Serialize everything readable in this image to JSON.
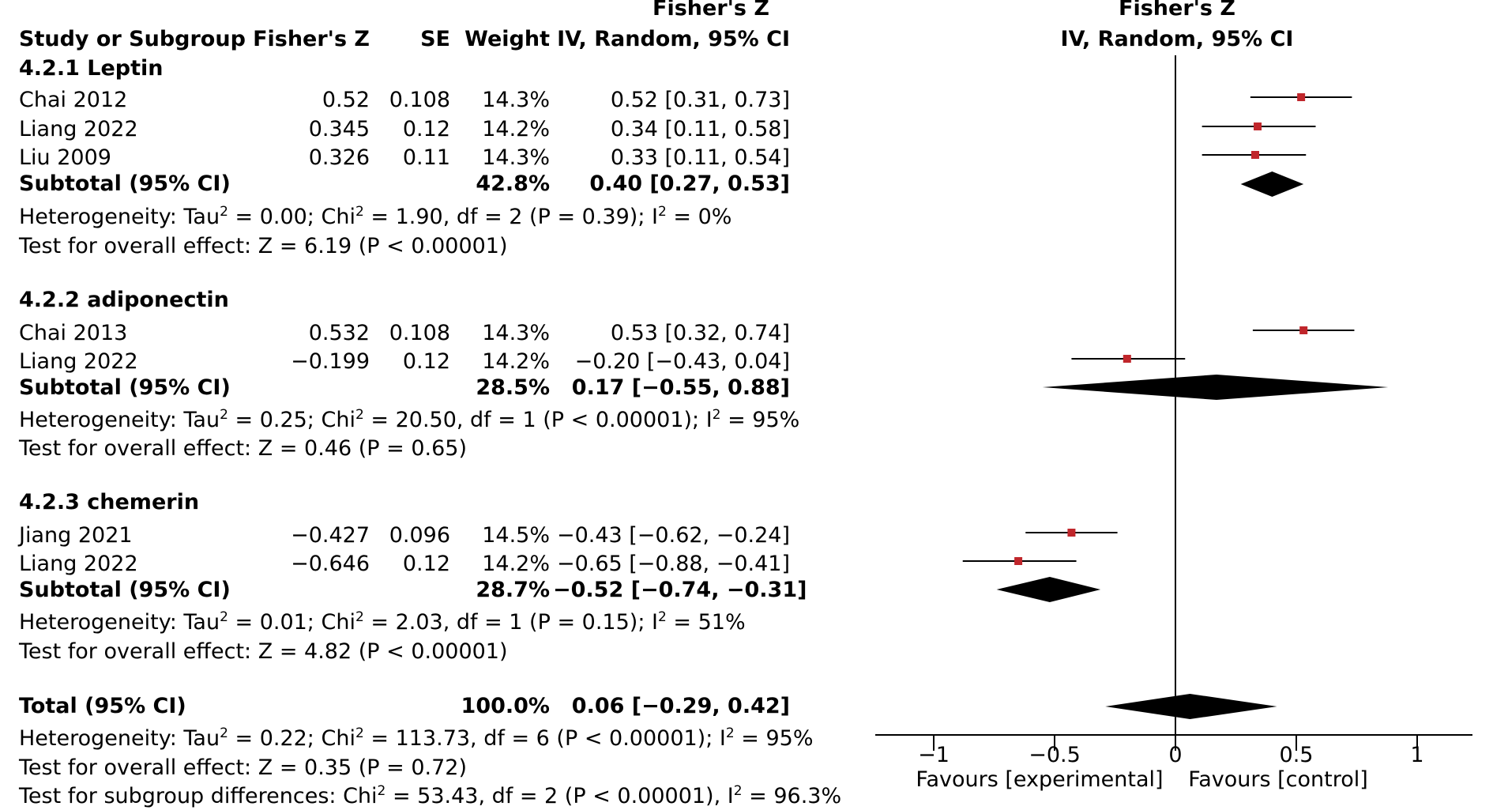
{
  "header": {
    "study_label": "Study or Subgroup",
    "est_label": "Fisher's Z",
    "se_label": "SE",
    "weight_label": "Weight",
    "ci_title": "Fisher's Z",
    "ci_method": "IV, Random, 95% CI",
    "plot_title": "Fisher's Z",
    "plot_method": "IV, Random, 95% CI"
  },
  "subgroups": [
    {
      "title": "4.2.1 Leptin",
      "studies": [
        {
          "name": "Chai  2012",
          "est": "0.52",
          "se": "0.108",
          "weight": "14.3%",
          "ci": "0.52 [0.31, 0.73]"
        },
        {
          "name": "Liang  2022",
          "est": "0.345",
          "se": "0.12",
          "weight": "14.2%",
          "ci": "0.34 [0.11, 0.58]"
        },
        {
          "name": "Liu  2009",
          "est": "0.326",
          "se": "0.11",
          "weight": "14.3%",
          "ci": "0.33 [0.11, 0.54]"
        }
      ],
      "subtotal": {
        "label": "Subtotal (95% CI)",
        "weight": "42.8%",
        "ci": "0.40 [0.27, 0.53]"
      },
      "het": {
        "prefix": "Heterogeneity: Tau",
        "exp1": "2",
        "mid1": " = 0.00; Chi",
        "exp2": "2",
        "mid2": " = 1.90, df = 2 (P = 0.39); I",
        "exp3": "2",
        "suffix": " = 0%"
      },
      "test": "Test for overall effect: Z = 6.19 (P < 0.00001)"
    },
    {
      "title": "4.2.2 adiponectin",
      "studies": [
        {
          "name": "Chai  2013",
          "est": "0.532",
          "se": "0.108",
          "weight": "14.3%",
          "ci": "0.53 [0.32, 0.74]"
        },
        {
          "name": "Liang  2022",
          "est": "−0.199",
          "se": "0.12",
          "weight": "14.2%",
          "ci": "−0.20 [−0.43, 0.04]"
        }
      ],
      "subtotal": {
        "label": "Subtotal (95% CI)",
        "weight": "28.5%",
        "ci": "0.17 [−0.55, 0.88]"
      },
      "het": {
        "prefix": "Heterogeneity: Tau",
        "exp1": "2",
        "mid1": " = 0.25; Chi",
        "exp2": "2",
        "mid2": " = 20.50, df = 1 (P < 0.00001); I",
        "exp3": "2",
        "suffix": " = 95%"
      },
      "test": "Test for overall effect: Z = 0.46 (P = 0.65)"
    },
    {
      "title": "4.2.3 chemerin",
      "studies": [
        {
          "name": "Jiang  2021",
          "est": "−0.427",
          "se": "0.096",
          "weight": "14.5%",
          "ci": "−0.43 [−0.62, −0.24]"
        },
        {
          "name": "Liang  2022",
          "est": "−0.646",
          "se": "0.12",
          "weight": "14.2%",
          "ci": "−0.65 [−0.88, −0.41]"
        }
      ],
      "subtotal": {
        "label": "Subtotal (95% CI)",
        "weight": "28.7%",
        "ci": "−0.52 [−0.74, −0.31]"
      },
      "het": {
        "prefix": "Heterogeneity: Tau",
        "exp1": "2",
        "mid1": " = 0.01; Chi",
        "exp2": "2",
        "mid2": " = 2.03, df = 1 (P = 0.15); I",
        "exp3": "2",
        "suffix": " = 51%"
      },
      "test": "Test for overall effect: Z = 4.82 (P < 0.00001)"
    }
  ],
  "total": {
    "label": "Total (95% CI)",
    "weight": "100.0%",
    "ci": "0.06 [−0.29, 0.42]",
    "het": {
      "prefix": "Heterogeneity: Tau",
      "exp1": "2",
      "mid1": " = 0.22; Chi",
      "exp2": "2",
      "mid2": " = 113.73, df = 6 (P < 0.00001); I",
      "exp3": "2",
      "suffix": " = 95%"
    },
    "test": "Test for overall effect: Z = 0.35 (P = 0.72)",
    "subgroup": {
      "prefix": "Test for subgroup differences: Chi",
      "exp1": "2",
      "mid1": " = 53.43, df = 2 (P < 0.00001), I",
      "exp2": "2",
      "suffix": " = 96.3%"
    }
  },
  "axis": {
    "ticks": [
      {
        "value": -1,
        "label": "−1"
      },
      {
        "value": -0.5,
        "label": "−0.5"
      },
      {
        "value": 0,
        "label": "0"
      },
      {
        "value": 0.5,
        "label": "0.5"
      },
      {
        "value": 1,
        "label": "1"
      }
    ],
    "favours_left": "Favours [experimental]",
    "favours_right": "Favours [control]"
  },
  "colors": {
    "study_marker": "#c0262b",
    "diamond": "#000000",
    "line": "#000000"
  },
  "chart_data": {
    "type": "forest",
    "title": "Fisher's Z IV, Random, 95% CI",
    "xlim": [
      -1.2,
      1.23
    ],
    "null_line": 0,
    "studies": [
      {
        "subgroup": "4.2.1 Leptin",
        "name": "Chai  2012",
        "est": 0.52,
        "lo": 0.31,
        "hi": 0.73
      },
      {
        "subgroup": "4.2.1 Leptin",
        "name": "Liang  2022",
        "est": 0.34,
        "lo": 0.11,
        "hi": 0.58
      },
      {
        "subgroup": "4.2.1 Leptin",
        "name": "Liu  2009",
        "est": 0.33,
        "lo": 0.11,
        "hi": 0.54
      },
      {
        "subgroup": "4.2.2 adiponectin",
        "name": "Chai  2013",
        "est": 0.53,
        "lo": 0.32,
        "hi": 0.74
      },
      {
        "subgroup": "4.2.2 adiponectin",
        "name": "Liang  2022",
        "est": -0.2,
        "lo": -0.43,
        "hi": 0.04
      },
      {
        "subgroup": "4.2.3 chemerin",
        "name": "Jiang  2021",
        "est": -0.43,
        "lo": -0.62,
        "hi": -0.24
      },
      {
        "subgroup": "4.2.3 chemerin",
        "name": "Liang  2022",
        "est": -0.65,
        "lo": -0.88,
        "hi": -0.41
      }
    ],
    "diamonds": [
      {
        "name": "4.2.1 Leptin subtotal",
        "est": 0.4,
        "lo": 0.27,
        "hi": 0.53
      },
      {
        "name": "4.2.2 adiponectin subtotal",
        "est": 0.17,
        "lo": -0.55,
        "hi": 0.88
      },
      {
        "name": "4.2.3 chemerin subtotal",
        "est": -0.52,
        "lo": -0.74,
        "hi": -0.31
      },
      {
        "name": "Total",
        "est": 0.06,
        "lo": -0.29,
        "hi": 0.42
      }
    ],
    "xlabel_left": "Favours [experimental]",
    "xlabel_right": "Favours [control]"
  }
}
